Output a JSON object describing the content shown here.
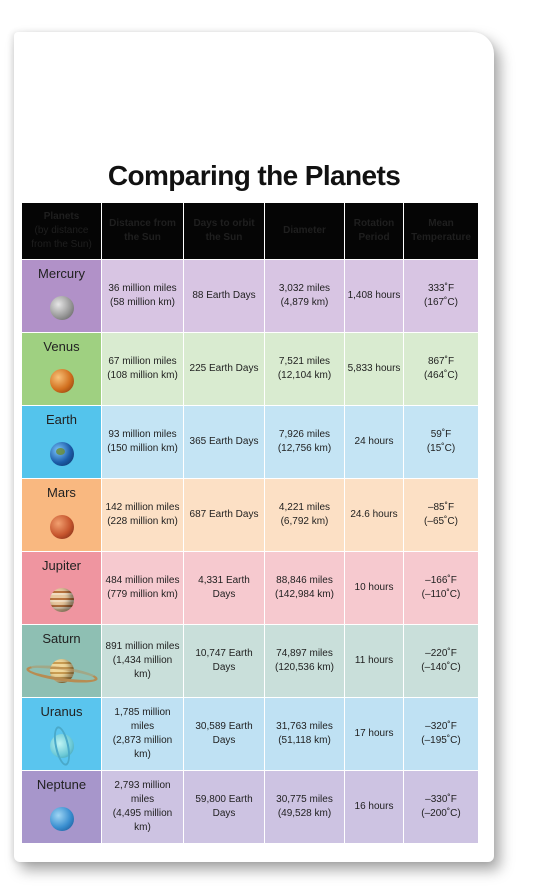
{
  "title": "Comparing the Planets",
  "headers": {
    "planets": [
      "Planets",
      "(by distance",
      "from the Sun)"
    ],
    "distance": [
      "Distance from",
      "the Sun"
    ],
    "orbit": [
      "Days to orbit",
      "the Sun"
    ],
    "diameter": "Diameter",
    "rotation": [
      "Rotation",
      "Period"
    ],
    "temperature": [
      "Mean",
      "Temperature"
    ]
  },
  "planets": [
    {
      "name": "Mercury",
      "distance": [
        "36 million miles",
        "(58 million km)"
      ],
      "orbit": "88 Earth Days",
      "diameter": [
        "3,032 miles",
        "(4,879 km)"
      ],
      "rotation": "1,408 hours",
      "temperature": [
        "333˚F",
        "(167˚C)"
      ]
    },
    {
      "name": "Venus",
      "distance": [
        "67 million miles",
        "(108 million km)"
      ],
      "orbit": "225 Earth Days",
      "diameter": [
        "7,521 miles",
        "(12,104 km)"
      ],
      "rotation": "5,833 hours",
      "temperature": [
        "867˚F",
        "(464˚C)"
      ]
    },
    {
      "name": "Earth",
      "distance": [
        "93 million miles",
        "(150 million km)"
      ],
      "orbit": "365 Earth Days",
      "diameter": [
        "7,926 miles",
        "(12,756 km)"
      ],
      "rotation": "24 hours",
      "temperature": [
        "59˚F",
        "(15˚C)"
      ]
    },
    {
      "name": "Mars",
      "distance": [
        "142 million miles",
        "(228 million km)"
      ],
      "orbit": "687 Earth Days",
      "diameter": [
        "4,221 miles",
        "(6,792 km)"
      ],
      "rotation": "24.6 hours",
      "temperature": [
        "–85˚F",
        "(–65˚C)"
      ]
    },
    {
      "name": "Jupiter",
      "distance": [
        "484 million miles",
        "(779 million km)"
      ],
      "orbit": "4,331 Earth Days",
      "diameter": [
        "88,846 miles",
        "(142,984 km)"
      ],
      "rotation": "10 hours",
      "temperature": [
        "–166˚F",
        "(–110˚C)"
      ]
    },
    {
      "name": "Saturn",
      "distance": [
        "891 million miles",
        "(1,434 million km)"
      ],
      "orbit": "10,747 Earth Days",
      "diameter": [
        "74,897 miles",
        "(120,536 km)"
      ],
      "rotation": "11 hours",
      "temperature": [
        "–220˚F",
        "(–140˚C)"
      ]
    },
    {
      "name": "Uranus",
      "distance": [
        "1,785 million miles",
        "(2,873 million km)"
      ],
      "orbit": "30,589 Earth Days",
      "diameter": [
        "31,763 miles",
        "(51,118 km)"
      ],
      "rotation": "17 hours",
      "temperature": [
        "–320˚F",
        "(–195˚C)"
      ]
    },
    {
      "name": "Neptune",
      "distance": [
        "2,793 million miles",
        "(4,495 million km)"
      ],
      "orbit": "59,800 Earth Days",
      "diameter": [
        "30,775 miles",
        "(49,528 km)"
      ],
      "rotation": "16 hours",
      "temperature": [
        "–330˚F",
        "(–200˚C)"
      ]
    }
  ],
  "colors": {
    "header_bg": "#050505",
    "mercury": "#b191c8",
    "venus": "#9fd081",
    "earth": "#54c4ec",
    "mars": "#f9b880",
    "jupiter": "#ef95a0",
    "saturn": "#8ebfb3",
    "uranus": "#5ac5ee",
    "neptune": "#a796cb"
  },
  "icons": [
    "mercury-icon",
    "venus-icon",
    "earth-icon",
    "mars-icon",
    "jupiter-icon",
    "saturn-icon",
    "uranus-icon",
    "neptune-icon"
  ]
}
